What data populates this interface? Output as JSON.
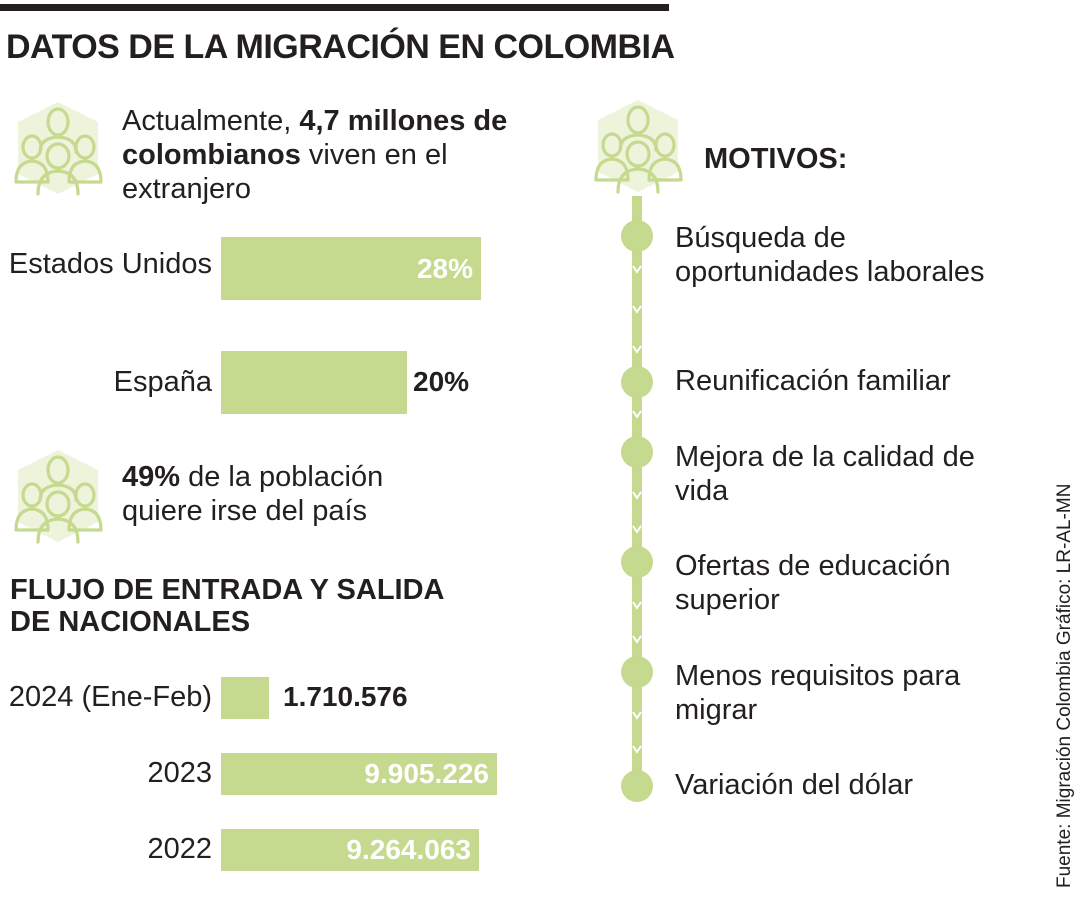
{
  "title": "DATOS DE LA MIGRACIÓN EN COLOMBIA",
  "colors": {
    "accent": "#c5d98f",
    "text": "#231f20"
  },
  "stat_living_abroad": {
    "prefix": "Actualmente, ",
    "bold": "4,7 millones de colombianos",
    "suffix": " viven en el extranjero"
  },
  "stat_want_leave": {
    "bold": "49%",
    "suffix": " de la población quiere irse del país"
  },
  "flow_title": "FLUJO DE ENTRADA Y SALIDA DE NACIONALES",
  "motivos_title": "MOTIVOS:",
  "motivos": [
    "Búsqueda de oportunidades laborales",
    "Reunificación familiar",
    "Mejora de la calidad de vida",
    "Ofertas de educación superior",
    "Menos requisitos para migrar",
    "Variación del dólar"
  ],
  "source": "Fuente: Migración Colombia  Gráfico: LR-AL-MN",
  "chart_data": [
    {
      "type": "bar",
      "orientation": "horizontal",
      "categories": [
        "Estados Unidos",
        "España"
      ],
      "values": [
        28,
        20
      ],
      "value_labels": [
        "28%",
        "20%"
      ],
      "xlim": [
        0,
        28
      ]
    },
    {
      "type": "bar",
      "orientation": "horizontal",
      "title": "FLUJO DE ENTRADA Y SALIDA DE NACIONALES",
      "categories": [
        "2024 (Ene-Feb)",
        "2023",
        "2022"
      ],
      "values": [
        1710576,
        9905226,
        9264063
      ],
      "value_labels": [
        "1.710.576",
        "9.905.226",
        "9.264.063"
      ],
      "xlim": [
        0,
        9905226
      ]
    }
  ]
}
